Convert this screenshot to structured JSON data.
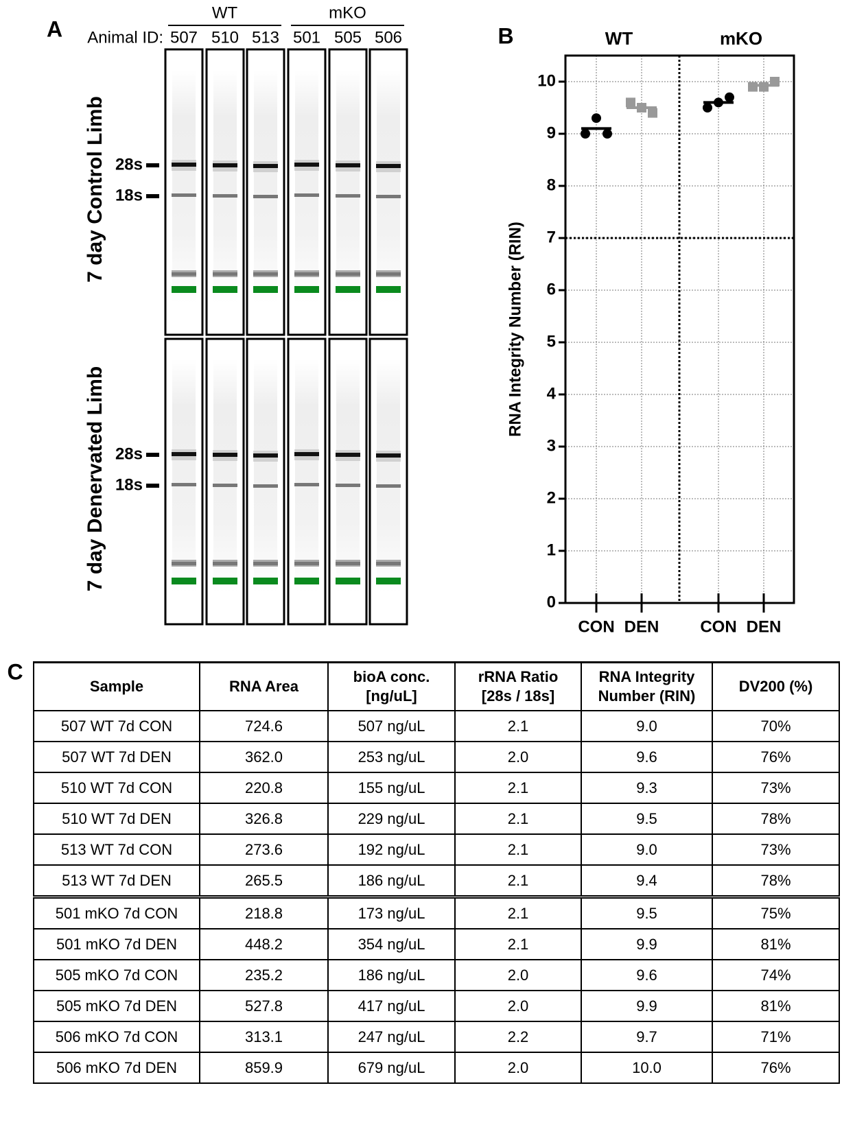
{
  "panel_a": {
    "label": "A",
    "animal_id_label": "Animal ID:",
    "groups": [
      {
        "name": "WT",
        "ids": [
          "507",
          "510",
          "513"
        ]
      },
      {
        "name": "mKO",
        "ids": [
          "501",
          "505",
          "506"
        ]
      }
    ],
    "rows": [
      {
        "label": "7 day Control Limb",
        "markers": [
          "28s",
          "18s"
        ]
      },
      {
        "label": "7 day Denervated Limb",
        "markers": [
          "28s",
          "18s"
        ]
      }
    ]
  },
  "chart_data": {
    "type": "dotplot",
    "label": "B",
    "ylabel": "RNA Integrity Number (RIN)",
    "groups": [
      "WT",
      "mKO"
    ],
    "categories": [
      "CON",
      "DEN",
      "CON",
      "DEN"
    ],
    "values": [
      [
        9.0,
        9.3,
        9.0
      ],
      [
        9.6,
        9.5,
        9.4
      ],
      [
        9.5,
        9.6,
        9.7
      ],
      [
        9.9,
        9.9,
        10.0
      ]
    ],
    "means": [
      9.1,
      9.5,
      9.6,
      9.93
    ],
    "colors": [
      "#000000",
      "#999999",
      "#000000",
      "#999999"
    ],
    "markers": [
      "circle",
      "square",
      "circle",
      "square"
    ],
    "ylim": [
      0,
      10.5
    ],
    "yticks": [
      0,
      1,
      2,
      3,
      4,
      5,
      6,
      7,
      8,
      9,
      10
    ],
    "hline": 7,
    "grid": true
  },
  "panel_c": {
    "label": "C",
    "table": {
      "header": [
        "Sample",
        "RNA Area",
        "bioA conc.\n[ng/uL]",
        "rRNA Ratio\n[28s / 18s]",
        "RNA Integrity\nNumber (RIN)",
        "DV200 (%)"
      ],
      "rows": [
        [
          "507 WT 7d CON",
          "724.6",
          "507 ng/uL",
          "2.1",
          "9.0",
          "70%"
        ],
        [
          "507 WT 7d DEN",
          "362.0",
          "253 ng/uL",
          "2.0",
          "9.6",
          "76%"
        ],
        [
          "510 WT 7d CON",
          "220.8",
          "155 ng/uL",
          "2.1",
          "9.3",
          "73%"
        ],
        [
          "510 WT 7d DEN",
          "326.8",
          "229 ng/uL",
          "2.1",
          "9.5",
          "78%"
        ],
        [
          "513 WT 7d CON",
          "273.6",
          "192 ng/uL",
          "2.1",
          "9.0",
          "73%"
        ],
        [
          "513 WT 7d DEN",
          "265.5",
          "186 ng/uL",
          "2.1",
          "9.4",
          "78%"
        ],
        [
          "501 mKO 7d CON",
          "218.8",
          "173 ng/uL",
          "2.1",
          "9.5",
          "75%"
        ],
        [
          "501 mKO 7d DEN",
          "448.2",
          "354 ng/uL",
          "2.1",
          "9.9",
          "81%"
        ],
        [
          "505 mKO 7d CON",
          "235.2",
          "186 ng/uL",
          "2.0",
          "9.6",
          "74%"
        ],
        [
          "505 mKO 7d DEN",
          "527.8",
          "417 ng/uL",
          "2.0",
          "9.9",
          "81%"
        ],
        [
          "506 mKO 7d CON",
          "313.1",
          "247 ng/uL",
          "2.2",
          "9.7",
          "71%"
        ],
        [
          "506 mKO 7d DEN",
          "859.9",
          "679 ng/uL",
          "2.0",
          "10.0",
          "76%"
        ]
      ]
    }
  }
}
